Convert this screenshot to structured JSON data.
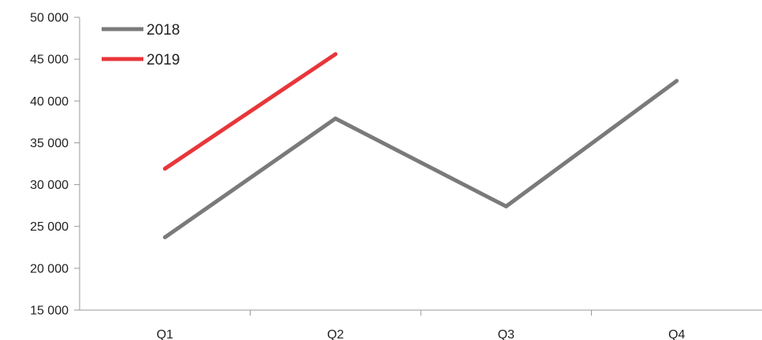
{
  "chart_data": {
    "type": "line",
    "categories": [
      "Q1",
      "Q2",
      "Q3",
      "Q4"
    ],
    "series": [
      {
        "name": "2018",
        "color": "#7a7a7a",
        "values": [
          23700,
          37900,
          27400,
          42400
        ]
      },
      {
        "name": "2019",
        "color": "#e8363a",
        "values": [
          31900,
          45600,
          null,
          null
        ]
      }
    ],
    "yticks": [
      15000,
      20000,
      25000,
      30000,
      35000,
      40000,
      45000,
      50000
    ],
    "ytick_labels": [
      "15 000",
      "20 000",
      "25 000",
      "30 000",
      "35 000",
      "40 000",
      "45 000",
      "50 000"
    ],
    "ylim": [
      15000,
      50000
    ],
    "grid": false,
    "legend": "top-left"
  }
}
